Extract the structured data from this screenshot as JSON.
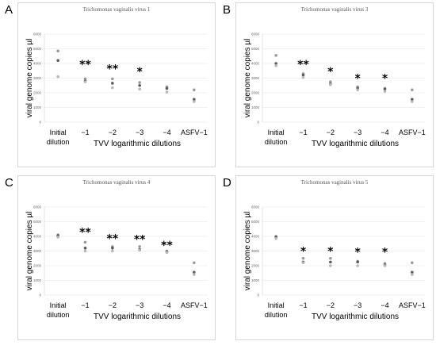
{
  "chart_data": [
    {
      "panel": "A",
      "type": "scatter",
      "title": "Trichomonas vaginalis virus 1",
      "ylabel": "viral genome copies µl",
      "xlabel": "TVV logarithmic dilutions",
      "categories": [
        "Initial\ndilution",
        "−1",
        "−2",
        "−3",
        "−4",
        "ASFV−1"
      ],
      "ylim": [
        0,
        6000
      ],
      "yticks": [
        0,
        1000,
        2000,
        3000,
        4000,
        5000,
        6000
      ],
      "grid": true,
      "points": [
        [
          4850,
          4200,
          3100
        ],
        [
          2950,
          2800,
          2750
        ],
        [
          2950,
          2650,
          2350
        ],
        [
          2700,
          2500,
          2250
        ],
        [
          2400,
          2300,
          2050
        ],
        [
          2200,
          1550,
          1400
        ]
      ],
      "significance": [
        "",
        "**",
        "**",
        "*",
        "",
        ""
      ],
      "sig_y": [
        null,
        3900,
        3600,
        3400,
        null,
        null
      ]
    },
    {
      "panel": "B",
      "type": "scatter",
      "title": "Trichomonas vaginalis virus 3",
      "ylabel": "viral genome copies µl",
      "xlabel": "TVV logarithmic dilutions",
      "categories": [
        "Initial\ndilution",
        "−1",
        "−2",
        "−3",
        "−4",
        "ASFV−1"
      ],
      "ylim": [
        0,
        6000
      ],
      "yticks": [
        0,
        1000,
        2000,
        3000,
        4000,
        5000,
        6000
      ],
      "grid": true,
      "points": [
        [
          4550,
          4000,
          3850
        ],
        [
          3300,
          3200,
          3050
        ],
        [
          2750,
          2600,
          2550
        ],
        [
          2400,
          2300,
          2200
        ],
        [
          2300,
          2250,
          2100
        ],
        [
          2200,
          1550,
          1400
        ]
      ],
      "significance": [
        "",
        "**",
        "*",
        "*",
        "*",
        ""
      ],
      "sig_y": [
        null,
        3900,
        3400,
        2950,
        2950,
        null
      ]
    },
    {
      "panel": "C",
      "type": "scatter",
      "title": "Trichomonas vaginalis virus 4",
      "ylabel": "viral genome copies µl",
      "xlabel": "TVV logarithmic dilutions",
      "categories": [
        "Initial\ndilution",
        "−1",
        "−2",
        "−3",
        "−4",
        "ASFV−1"
      ],
      "ylim": [
        0,
        6000
      ],
      "yticks": [
        0,
        1000,
        2000,
        3000,
        4000,
        5000,
        6000
      ],
      "grid": true,
      "points": [
        [
          4100,
          4050,
          3950
        ],
        [
          3600,
          3200,
          3000
        ],
        [
          3300,
          3200,
          3000
        ],
        [
          3300,
          3100,
          3050
        ],
        [
          3000,
          2950,
          2900
        ],
        [
          2200,
          1550,
          1400
        ]
      ],
      "significance": [
        "",
        "**",
        "**",
        "**",
        "**",
        ""
      ],
      "sig_y": [
        null,
        4250,
        3800,
        3750,
        3350,
        null
      ]
    },
    {
      "panel": "D",
      "type": "scatter",
      "title": "Trichomonas vaginalis virus 5",
      "ylabel": "viral genome copies µl",
      "xlabel": "TVV logarithmic dilutions",
      "categories": [
        "Initial\ndilution",
        "−1",
        "−2",
        "−3",
        "−4",
        "ASFV−1"
      ],
      "ylim": [
        0,
        6000
      ],
      "yticks": [
        0,
        1000,
        2000,
        3000,
        4000,
        5000,
        6000
      ],
      "grid": true,
      "points": [
        [
          4000,
          3950,
          3850
        ],
        [
          2500,
          2250,
          2200
        ],
        [
          2500,
          2250,
          2000
        ],
        [
          2300,
          2250,
          2000
        ],
        [
          2150,
          2050,
          2000
        ],
        [
          2200,
          1550,
          1400
        ]
      ],
      "significance": [
        "",
        "*",
        "*",
        "*",
        "*",
        ""
      ],
      "sig_y": [
        null,
        2950,
        2950,
        2900,
        2900,
        null
      ]
    }
  ]
}
